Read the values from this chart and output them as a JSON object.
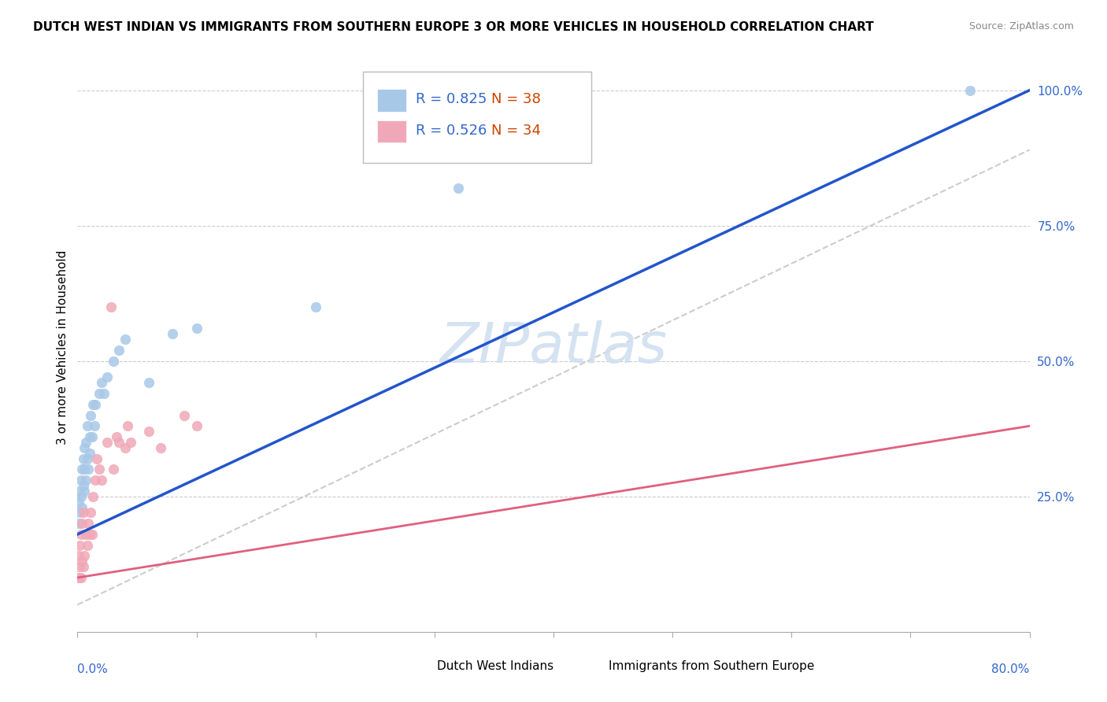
{
  "title": "DUTCH WEST INDIAN VS IMMIGRANTS FROM SOUTHERN EUROPE 3 OR MORE VEHICLES IN HOUSEHOLD CORRELATION CHART",
  "source": "Source: ZipAtlas.com",
  "ylabel": "3 or more Vehicles in Household",
  "legend1_r": "0.825",
  "legend1_n": "38",
  "legend2_r": "0.526",
  "legend2_n": "34",
  "legend1_label": "Dutch West Indians",
  "legend2_label": "Immigrants from Southern Europe",
  "blue_color": "#a8c8e8",
  "pink_color": "#f0a8b8",
  "blue_line_color": "#2255cc",
  "pink_line_color": "#e06080",
  "gray_line_color": "#cccccc",
  "watermark_color": "#d0dff0",
  "r_color": "#3366cc",
  "n_color": "#cc4400",
  "xmin": 0.0,
  "xmax": 0.8,
  "ymin": 0.0,
  "ymax": 1.05,
  "blue_scatter_x": [
    0.001,
    0.001,
    0.002,
    0.002,
    0.003,
    0.003,
    0.004,
    0.004,
    0.005,
    0.005,
    0.006,
    0.006,
    0.006,
    0.007,
    0.007,
    0.008,
    0.008,
    0.009,
    0.01,
    0.01,
    0.011,
    0.012,
    0.013,
    0.014,
    0.015,
    0.018,
    0.02,
    0.022,
    0.025,
    0.03,
    0.035,
    0.04,
    0.06,
    0.08,
    0.1,
    0.2,
    0.32,
    0.75
  ],
  "blue_scatter_y": [
    0.2,
    0.24,
    0.22,
    0.26,
    0.25,
    0.28,
    0.23,
    0.3,
    0.27,
    0.32,
    0.26,
    0.3,
    0.34,
    0.28,
    0.35,
    0.32,
    0.38,
    0.3,
    0.33,
    0.36,
    0.4,
    0.36,
    0.42,
    0.38,
    0.42,
    0.44,
    0.46,
    0.44,
    0.47,
    0.5,
    0.52,
    0.54,
    0.46,
    0.55,
    0.56,
    0.6,
    0.82,
    1.0
  ],
  "pink_scatter_x": [
    0.001,
    0.001,
    0.002,
    0.002,
    0.003,
    0.003,
    0.004,
    0.004,
    0.005,
    0.005,
    0.006,
    0.007,
    0.008,
    0.009,
    0.01,
    0.011,
    0.012,
    0.013,
    0.015,
    0.016,
    0.018,
    0.02,
    0.025,
    0.03,
    0.033,
    0.035,
    0.04,
    0.042,
    0.045,
    0.06,
    0.07,
    0.09,
    0.1,
    0.028
  ],
  "pink_scatter_y": [
    0.1,
    0.14,
    0.12,
    0.16,
    0.1,
    0.18,
    0.13,
    0.2,
    0.12,
    0.22,
    0.14,
    0.18,
    0.16,
    0.2,
    0.18,
    0.22,
    0.18,
    0.25,
    0.28,
    0.32,
    0.3,
    0.28,
    0.35,
    0.3,
    0.36,
    0.35,
    0.34,
    0.38,
    0.35,
    0.37,
    0.34,
    0.4,
    0.38,
    0.6
  ]
}
